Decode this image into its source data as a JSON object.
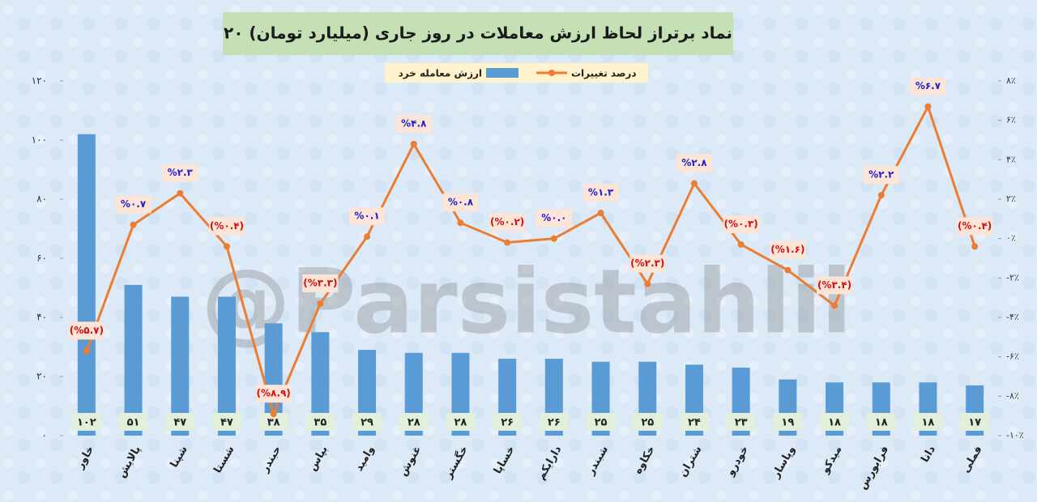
{
  "chart_data": {
    "type": "bar_line",
    "title": "۲۰ نماد برتراز لحاظ ارزش معاملات در روز جاری (میلیارد تومان)",
    "watermark": "@Parsistahlil",
    "categories": [
      "خاور",
      "پالایش",
      "شپنا",
      "شستا",
      "حبندر",
      "بپاس",
      "وامید",
      "غنوش",
      "خگستر",
      "خساپا",
      "دارایکم",
      "شبندر",
      "خکاوه",
      "شتران",
      "خودرو",
      "وپاسار",
      "میدکو",
      "فرابورس",
      "دانا",
      "فملی"
    ],
    "series": [
      {
        "name": "ارزش معامله خرد",
        "color": "#5b9bd5",
        "values": [
          102,
          51,
          47,
          47,
          38,
          35,
          29,
          28,
          28,
          26,
          26,
          25,
          25,
          24,
          23,
          19,
          18,
          18,
          18,
          17
        ],
        "value_labels": [
          "۱۰۲",
          "۵۱",
          "۴۷",
          "۴۷",
          "۳۸",
          "۳۵",
          "۲۹",
          "۲۸",
          "۲۸",
          "۲۶",
          "۲۶",
          "۲۵",
          "۲۵",
          "۲۴",
          "۲۳",
          "۱۹",
          "۱۸",
          "۱۸",
          "۱۸",
          "۱۷"
        ]
      },
      {
        "name": "درصد تغییرات",
        "color": "#ed7d31",
        "axis": "y2",
        "values": [
          -5.7,
          0.7,
          2.3,
          -0.4,
          -8.9,
          -3.3,
          0.1,
          4.8,
          0.8,
          -0.2,
          0.0,
          1.3,
          -2.3,
          2.8,
          -0.3,
          -1.6,
          -3.4,
          2.2,
          6.7,
          -0.4
        ],
        "value_labels": [
          "(%۵.۷)",
          "%۰.۷",
          "%۲.۳",
          "(%۰.۴)",
          "(%۸.۹)",
          "(%۳.۳)",
          "%۰.۱",
          "%۴.۸",
          "%۰.۸",
          "(%۰.۲)",
          "%۰.۰",
          "%۱.۳",
          "(%۲.۳)",
          "%۲.۸",
          "(%۰.۳)",
          "(%۱.۶)",
          "(%۳.۴)",
          "%۲.۲",
          "%۶.۷",
          "(%۰.۴)"
        ]
      }
    ],
    "positive_label_color": "#1f1fcf",
    "negative_label_color": "#d01010",
    "ylim": [
      0,
      120
    ],
    "yticks": [
      {
        "value": 0,
        "label": "۰"
      },
      {
        "value": 20,
        "label": "۲۰"
      },
      {
        "value": 40,
        "label": "۴۰"
      },
      {
        "value": 60,
        "label": "۶۰"
      },
      {
        "value": 80,
        "label": "۸۰"
      },
      {
        "value": 100,
        "label": "۱۰۰"
      },
      {
        "value": 120,
        "label": "۱۲۰"
      }
    ],
    "y2lim": [
      -10,
      8
    ],
    "y2ticks": [
      {
        "value": -10,
        "label": "-۱۰٪"
      },
      {
        "value": -8,
        "label": "-۸٪"
      },
      {
        "value": -6,
        "label": "-۶٪"
      },
      {
        "value": -4,
        "label": "-۴٪"
      },
      {
        "value": -2,
        "label": "-۲٪"
      },
      {
        "value": 0,
        "label": "۰٪"
      },
      {
        "value": 2,
        "label": "۲٪"
      },
      {
        "value": 4,
        "label": "۴٪"
      },
      {
        "value": 6,
        "label": "۶٪"
      },
      {
        "value": 8,
        "label": "۸٪"
      }
    ]
  }
}
